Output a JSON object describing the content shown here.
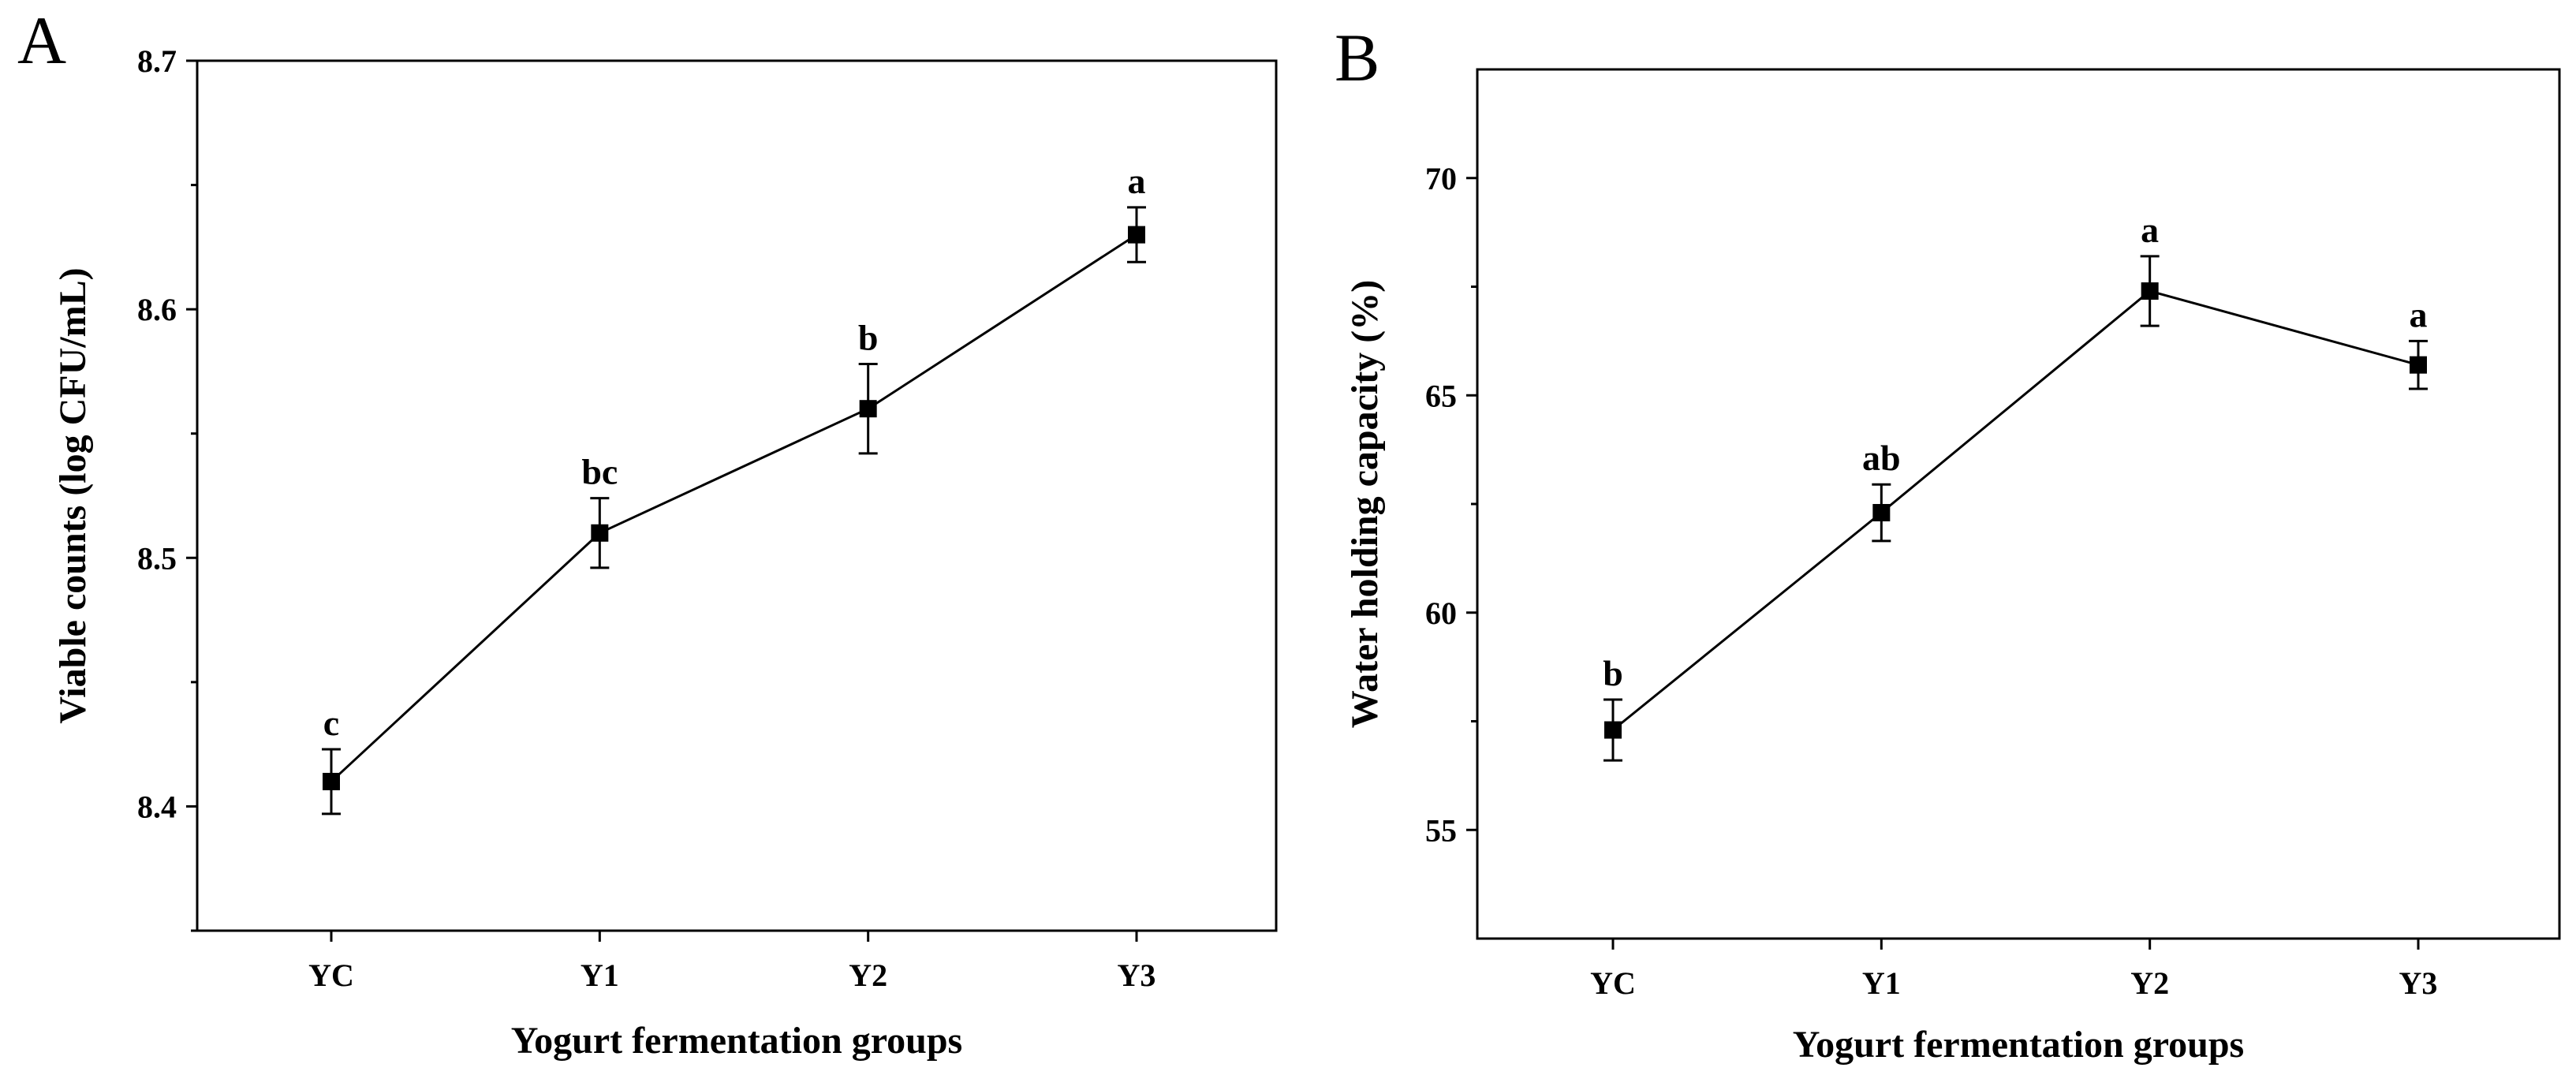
{
  "chart_data": [
    {
      "panel": "A",
      "type": "line",
      "title": "",
      "xlabel": "Yogurt fermentation groups",
      "ylabel": "Viable counts (log CFU/mL)",
      "categories": [
        "YC",
        "Y1",
        "Y2",
        "Y3"
      ],
      "values": [
        8.41,
        8.51,
        8.56,
        8.63
      ],
      "errors": [
        0.013,
        0.014,
        0.018,
        0.011
      ],
      "significance": [
        "c",
        "bc",
        "b",
        "a"
      ],
      "ylim": [
        8.35,
        8.7
      ],
      "yticks": [
        8.4,
        8.5,
        8.6,
        8.7
      ],
      "ytick_labels": [
        "8.4",
        "8.5",
        "8.6",
        "8.7"
      ],
      "grid": false,
      "marker": "square",
      "color": "#000000"
    },
    {
      "panel": "B",
      "type": "line",
      "title": "",
      "xlabel": "Yogurt fermentation groups",
      "ylabel": "Water holding capacity (%)",
      "categories": [
        "YC",
        "Y1",
        "Y2",
        "Y3"
      ],
      "values": [
        57.3,
        62.3,
        67.4,
        65.7
      ],
      "errors": [
        0.7,
        0.65,
        0.8,
        0.55
      ],
      "significance": [
        "b",
        "ab",
        "a",
        "a"
      ],
      "ylim": [
        52.5,
        72.5
      ],
      "yticks": [
        55,
        60,
        65,
        70
      ],
      "ytick_labels": [
        "55",
        "60",
        "65",
        "70"
      ],
      "grid": false,
      "marker": "square",
      "color": "#000000"
    }
  ]
}
